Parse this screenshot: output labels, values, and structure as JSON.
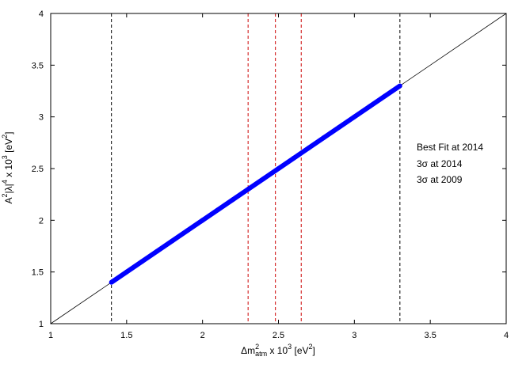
{
  "chart_data": {
    "type": "scatter",
    "xlim": [
      1,
      4
    ],
    "ylim": [
      1,
      4
    ],
    "x_ticks": [
      "1",
      "1.5",
      "2",
      "2.5",
      "3",
      "3.5",
      "4"
    ],
    "y_ticks": [
      "1",
      "1.5",
      "2",
      "2.5",
      "3",
      "3.5",
      "4"
    ],
    "xlabel": {
      "base": "Δm",
      "sup": "2",
      "sub": "atm",
      "rest": " x 10",
      "pow": "3",
      "unit_pre": " [eV",
      "unit_pow": "2",
      "unit_post": "]"
    },
    "ylabel": {
      "base": "A",
      "sup": "2",
      "mid": "|λ|",
      "pow4": "4",
      "rest": " x 10",
      "pow": "3",
      "unit_pre": " [eV",
      "unit_pow": "2",
      "unit_post": "]"
    },
    "grid": false,
    "series": [
      {
        "color": "#0000ff",
        "x_range": [
          1.4,
          3.3
        ],
        "relation": "y = x",
        "points": [
          [
            1.4,
            1.4
          ],
          [
            1.5,
            1.5
          ],
          [
            1.6,
            1.6
          ],
          [
            1.7,
            1.7
          ],
          [
            1.8,
            1.8
          ],
          [
            1.9,
            1.9
          ],
          [
            2.0,
            2.0
          ],
          [
            2.1,
            2.1
          ],
          [
            2.2,
            2.2
          ],
          [
            2.3,
            2.3
          ],
          [
            2.4,
            2.4
          ],
          [
            2.5,
            2.5
          ],
          [
            2.6,
            2.6
          ],
          [
            2.7,
            2.7
          ],
          [
            2.8,
            2.8
          ],
          [
            2.9,
            2.9
          ],
          [
            3.0,
            3.0
          ],
          [
            3.1,
            3.1
          ],
          [
            3.2,
            3.2
          ],
          [
            3.3,
            3.3
          ]
        ]
      }
    ],
    "reference_line": {
      "relation": "y = x",
      "color": "#000000"
    },
    "vertical_lines": [
      {
        "x": 1.4,
        "color": "#000000",
        "group": "3σ at 2009"
      },
      {
        "x": 2.3,
        "color": "#cc0000",
        "group": "3σ at 2014"
      },
      {
        "x": 2.48,
        "color": "#cc0000",
        "group": "Best Fit at 2014"
      },
      {
        "x": 2.65,
        "color": "#cc0000",
        "group": "3σ at 2014"
      },
      {
        "x": 3.3,
        "color": "#000000",
        "group": "3σ at 2009"
      }
    ],
    "legend": {
      "placement": "right",
      "entries": [
        {
          "label": "Best Fit at 2014",
          "color": "#cc0000"
        },
        {
          "label": "3σ at 2014",
          "color": "#cc0000"
        },
        {
          "label": "3σ at 2009",
          "color": "#000000"
        }
      ]
    }
  }
}
